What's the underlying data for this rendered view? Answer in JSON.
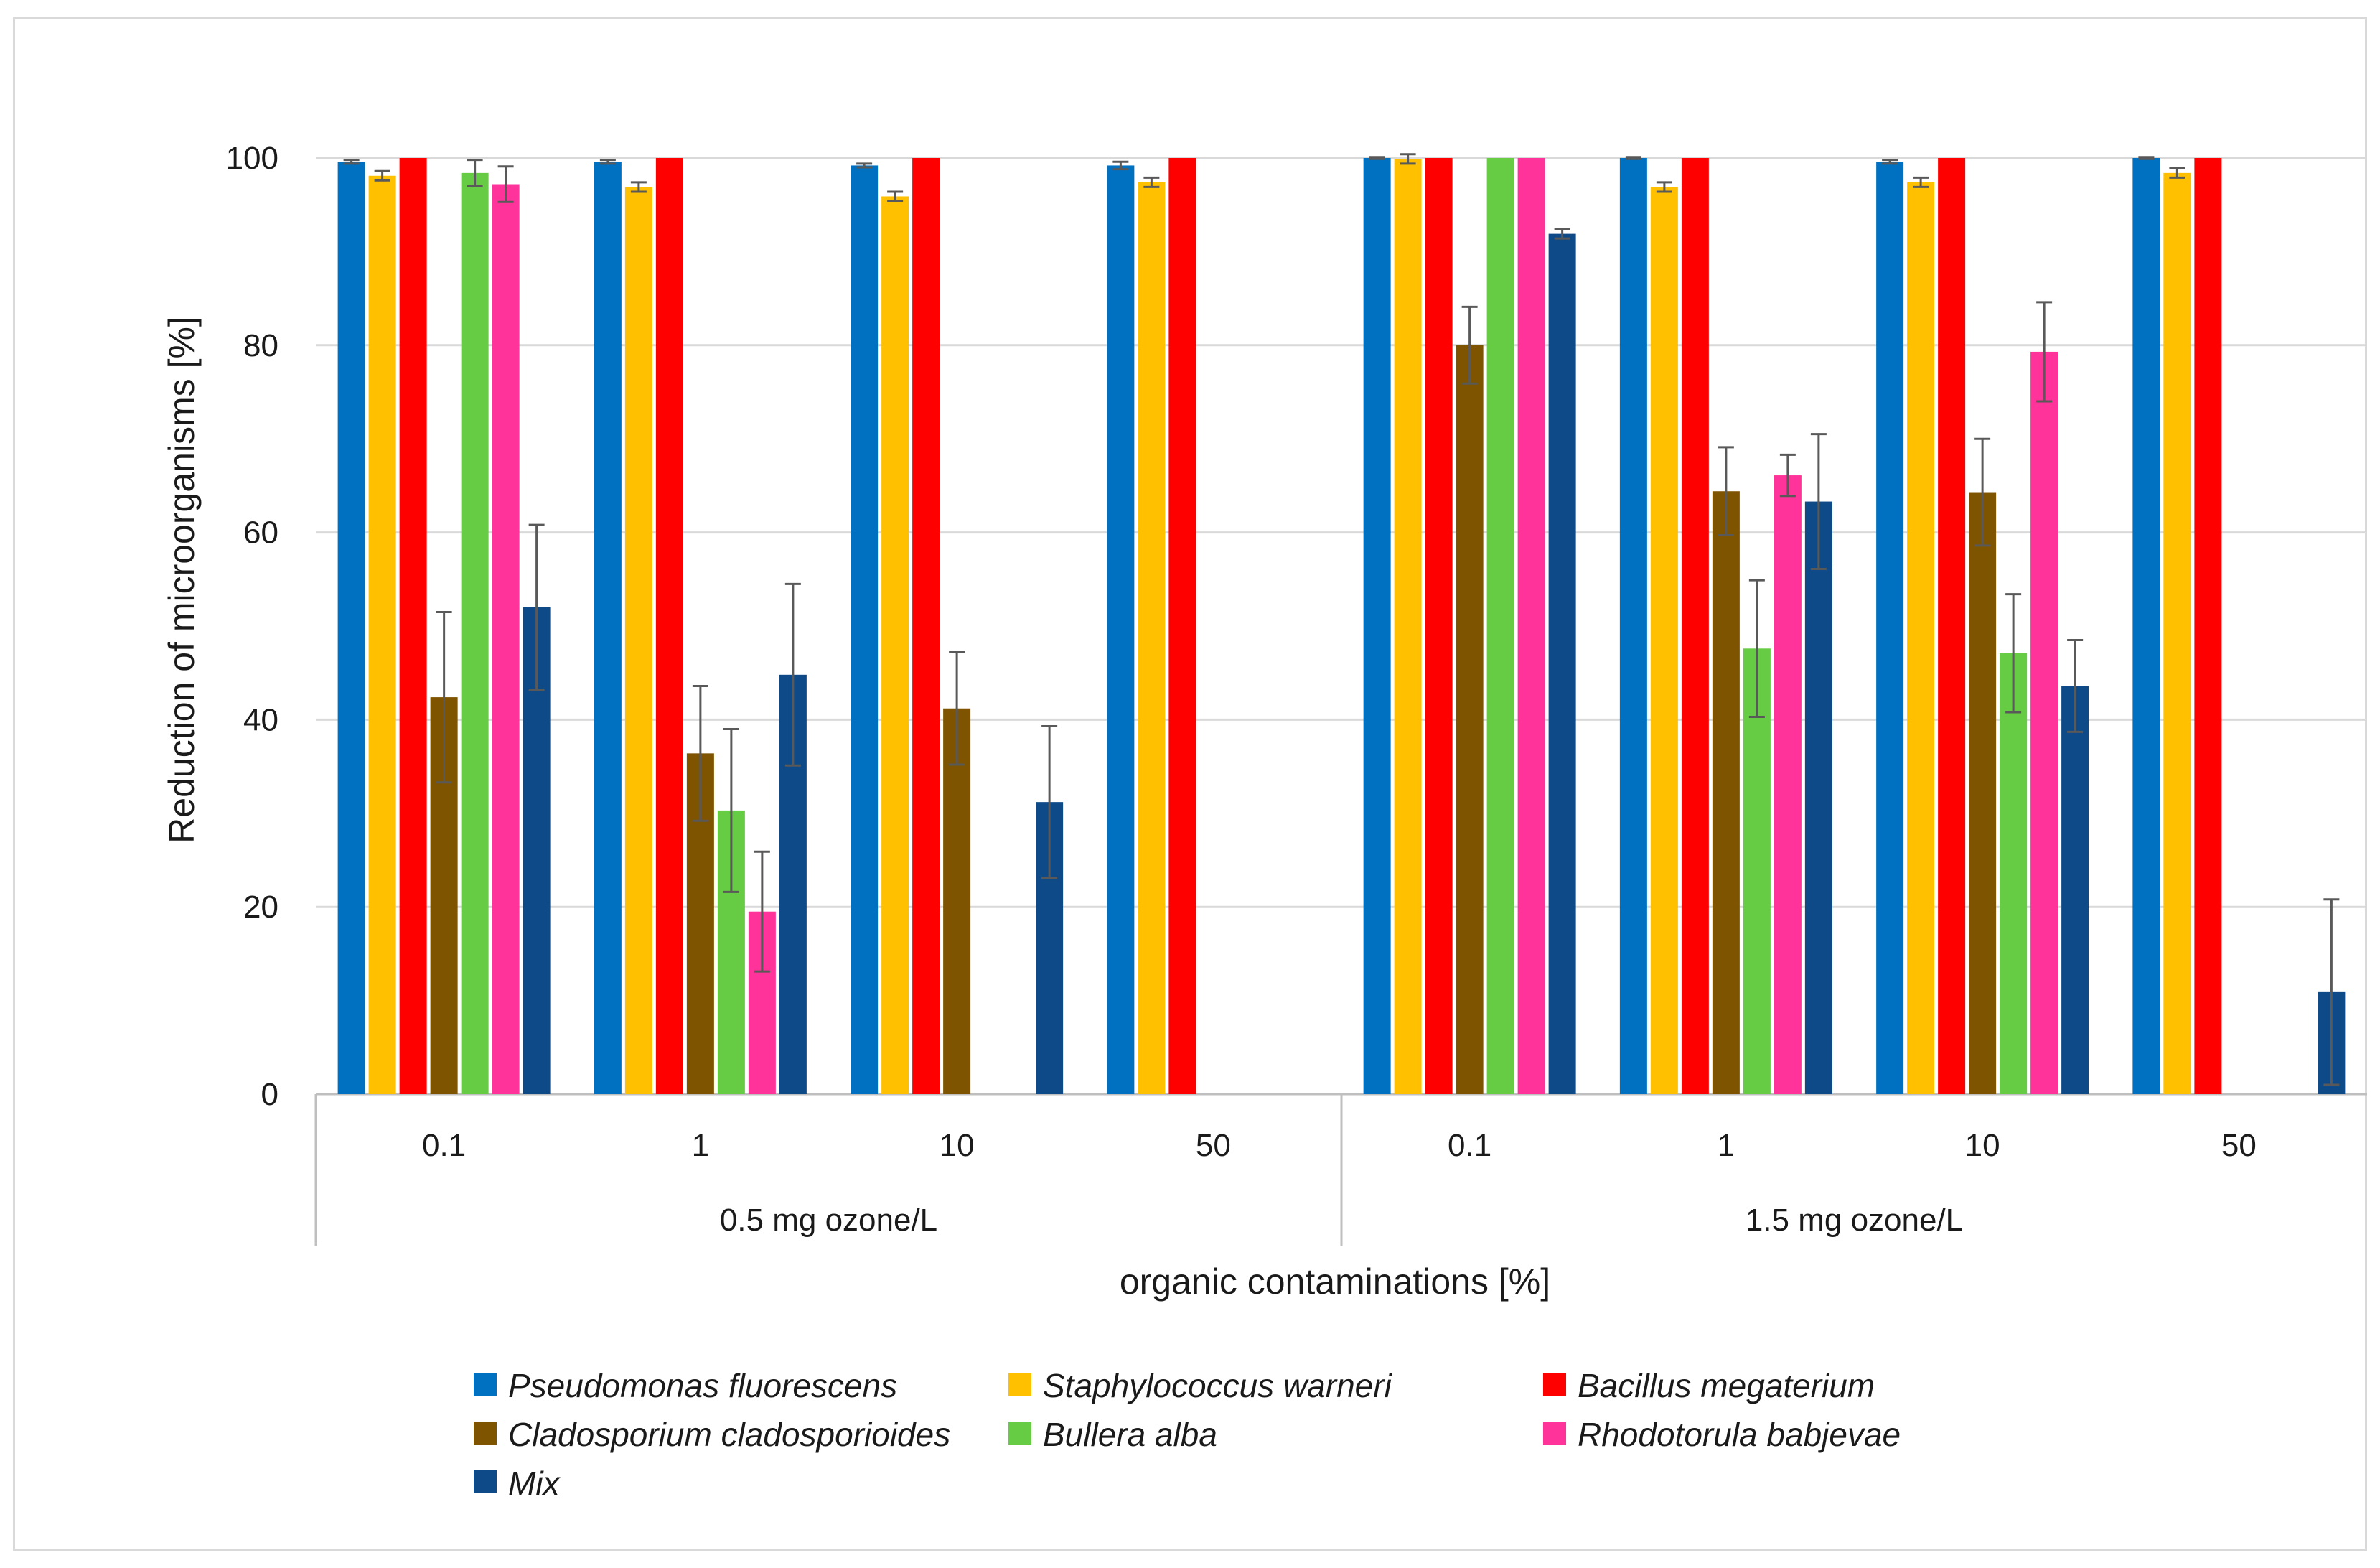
{
  "chart_data": {
    "type": "bar",
    "ylabel": "Reduction of microorganisms [%]",
    "xlabel": "organic contaminations [%]",
    "ylim": [
      0,
      100
    ],
    "yticks": [
      0,
      20,
      40,
      60,
      80,
      100
    ],
    "grid": true,
    "legend_position": "bottom",
    "groups": [
      "0.5 mg ozone/L",
      "1.5 mg ozone/L"
    ],
    "categories": [
      {
        "group": 0,
        "label": "0.1"
      },
      {
        "group": 0,
        "label": "1"
      },
      {
        "group": 0,
        "label": "10"
      },
      {
        "group": 0,
        "label": "50"
      },
      {
        "group": 1,
        "label": "0.1"
      },
      {
        "group": 1,
        "label": "1"
      },
      {
        "group": 1,
        "label": "10"
      },
      {
        "group": 1,
        "label": "50"
      }
    ],
    "series": [
      {
        "name": "Pseudomonas fluorescens",
        "color": "#0070C0",
        "values": [
          99.6,
          99.6,
          99.2,
          99.2,
          100,
          100,
          99.6,
          100
        ],
        "errors": [
          0.2,
          0.2,
          0.2,
          0.4,
          0.1,
          0.1,
          0.2,
          0.1
        ]
      },
      {
        "name": "Staphylococcus warneri",
        "color": "#FFC000",
        "values": [
          98.1,
          96.9,
          95.9,
          97.4,
          99.9,
          96.9,
          97.4,
          98.4
        ],
        "errors": [
          0.5,
          0.5,
          0.5,
          0.5,
          0.5,
          0.5,
          0.5,
          0.5
        ]
      },
      {
        "name": "Bacillus megaterium",
        "color": "#FF0000",
        "values": [
          100,
          100,
          100,
          100,
          100,
          100,
          100,
          100
        ],
        "errors": [
          0,
          0,
          0,
          0,
          0,
          0,
          0,
          0
        ]
      },
      {
        "name": "Cladosporium cladosporioides",
        "color": "#7F5400",
        "values": [
          42.4,
          36.4,
          41.2,
          null,
          80.0,
          64.4,
          64.3,
          null
        ],
        "errors": [
          9.1,
          7.2,
          6.0,
          null,
          4.1,
          4.7,
          5.7,
          null
        ]
      },
      {
        "name": "Bullera alba",
        "color": "#66CC44",
        "values": [
          98.4,
          30.3,
          null,
          null,
          100,
          47.6,
          47.1,
          null
        ],
        "errors": [
          1.4,
          8.7,
          null,
          null,
          0,
          7.3,
          6.3,
          null
        ]
      },
      {
        "name": "Rhodotorula babjevae",
        "color": "#FF3399",
        "values": [
          97.2,
          19.5,
          null,
          null,
          100,
          66.1,
          79.3,
          null
        ],
        "errors": [
          1.9,
          6.4,
          null,
          null,
          0,
          2.2,
          5.3,
          null
        ]
      },
      {
        "name": "Mix",
        "color": "#0D4A87",
        "values": [
          52.0,
          44.8,
          31.2,
          null,
          91.9,
          63.3,
          43.6,
          10.9
        ],
        "errors": [
          8.8,
          9.7,
          8.1,
          null,
          0.5,
          7.2,
          4.9,
          9.9
        ]
      }
    ]
  }
}
